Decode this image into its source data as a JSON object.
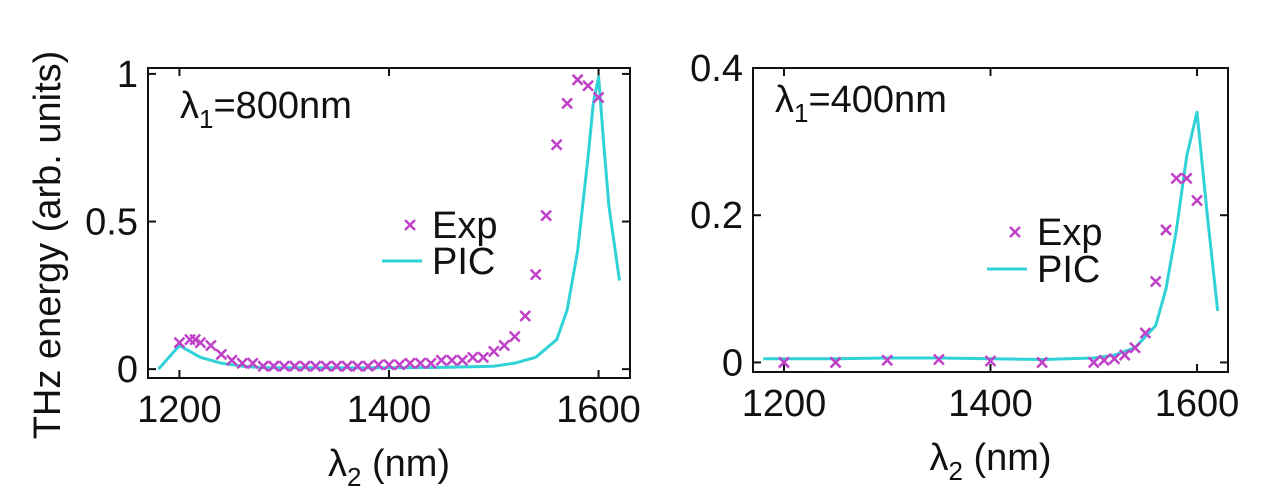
{
  "ylabel_shared": "THz energy (arb. units)",
  "colors": {
    "exp": "#c040c8",
    "pic": "#30d2d8",
    "axes": "#111111"
  },
  "chart_data": [
    {
      "type": "scatter",
      "annotation": {
        "base": "λ",
        "sub": "1",
        "rest": "=800nm"
      },
      "xlabel": {
        "base": "λ",
        "sub": "2",
        "rest": " (nm)"
      },
      "xlim": [
        1170,
        1630
      ],
      "ylim": [
        -0.03,
        1.02
      ],
      "xticks": [
        1200,
        1400,
        1600
      ],
      "xtick_labels": [
        "1200",
        "1400",
        "1600"
      ],
      "yticks": [
        0,
        0.5,
        1
      ],
      "ytick_labels": [
        "0",
        "0.5",
        "1"
      ],
      "legend": {
        "exp": "Exp",
        "pic": "PIC"
      },
      "series": [
        {
          "name": "Exp",
          "marker": "x",
          "x": [
            1200,
            1210,
            1215,
            1220,
            1230,
            1240,
            1250,
            1260,
            1270,
            1280,
            1290,
            1300,
            1310,
            1320,
            1330,
            1340,
            1350,
            1360,
            1370,
            1380,
            1390,
            1400,
            1410,
            1420,
            1430,
            1440,
            1450,
            1460,
            1470,
            1480,
            1490,
            1500,
            1510,
            1520,
            1530,
            1540,
            1550,
            1560,
            1570,
            1580,
            1590,
            1600
          ],
          "y": [
            0.09,
            0.1,
            0.1,
            0.09,
            0.08,
            0.05,
            0.03,
            0.02,
            0.02,
            0.01,
            0.01,
            0.01,
            0.01,
            0.01,
            0.01,
            0.01,
            0.01,
            0.01,
            0.01,
            0.01,
            0.015,
            0.015,
            0.015,
            0.02,
            0.02,
            0.02,
            0.03,
            0.03,
            0.03,
            0.04,
            0.04,
            0.06,
            0.08,
            0.11,
            0.18,
            0.32,
            0.52,
            0.76,
            0.9,
            0.98,
            0.96,
            0.92
          ]
        },
        {
          "name": "PIC",
          "marker": "line",
          "x": [
            1180,
            1190,
            1200,
            1210,
            1220,
            1230,
            1240,
            1260,
            1280,
            1300,
            1350,
            1400,
            1450,
            1500,
            1520,
            1540,
            1560,
            1570,
            1580,
            1590,
            1595,
            1600,
            1605,
            1610,
            1620
          ],
          "y": [
            0.0,
            0.04,
            0.08,
            0.06,
            0.04,
            0.03,
            0.02,
            0.01,
            0.005,
            0.005,
            0.005,
            0.005,
            0.006,
            0.01,
            0.02,
            0.04,
            0.1,
            0.2,
            0.4,
            0.72,
            0.9,
            0.99,
            0.76,
            0.55,
            0.3
          ]
        }
      ]
    },
    {
      "type": "scatter",
      "annotation": {
        "base": "λ",
        "sub": "1",
        "rest": "=400nm"
      },
      "xlabel": {
        "base": "λ",
        "sub": "2",
        "rest": " (nm)"
      },
      "xlim": [
        1170,
        1630
      ],
      "ylim": [
        -0.013,
        0.4
      ],
      "xticks": [
        1200,
        1400,
        1600
      ],
      "xtick_labels": [
        "1200",
        "1400",
        "1600"
      ],
      "yticks": [
        0,
        0.2,
        0.4
      ],
      "ytick_labels": [
        "0",
        "0.2",
        "0.4"
      ],
      "legend": {
        "exp": "Exp",
        "pic": "PIC"
      },
      "series": [
        {
          "name": "Exp",
          "marker": "x",
          "x": [
            1200,
            1250,
            1300,
            1350,
            1400,
            1450,
            1500,
            1510,
            1520,
            1530,
            1540,
            1550,
            1560,
            1570,
            1580,
            1590,
            1600
          ],
          "y": [
            0.0,
            0.0,
            0.003,
            0.004,
            0.002,
            0.0,
            0.0,
            0.003,
            0.005,
            0.01,
            0.02,
            0.04,
            0.11,
            0.18,
            0.25,
            0.25,
            0.22
          ]
        },
        {
          "name": "PIC",
          "marker": "line",
          "x": [
            1180,
            1200,
            1250,
            1300,
            1350,
            1400,
            1450,
            1500,
            1520,
            1540,
            1560,
            1570,
            1580,
            1590,
            1600,
            1610,
            1620
          ],
          "y": [
            0.005,
            0.005,
            0.005,
            0.006,
            0.006,
            0.005,
            0.004,
            0.006,
            0.01,
            0.02,
            0.05,
            0.1,
            0.18,
            0.28,
            0.34,
            0.2,
            0.07
          ]
        }
      ]
    }
  ]
}
